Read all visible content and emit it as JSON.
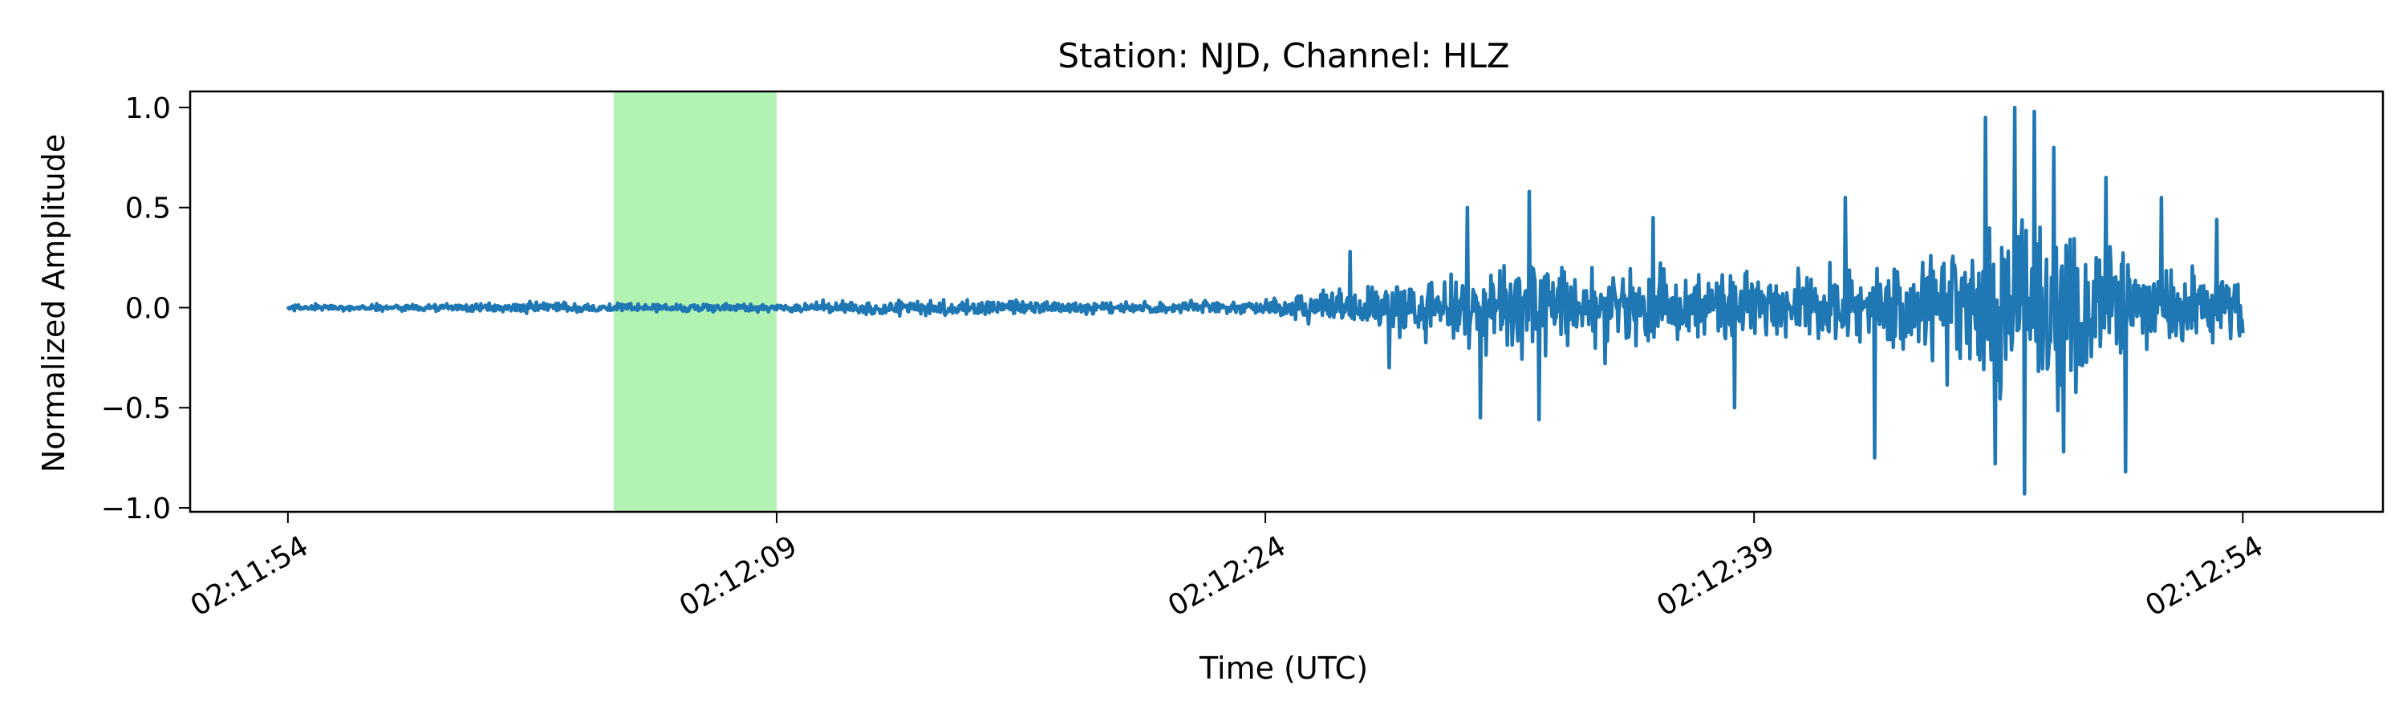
{
  "chart_data": {
    "type": "line",
    "title": "Station: NJD, Channel: HLZ",
    "xlabel": "Time (UTC)",
    "ylabel": "Normalized Amplitude",
    "x_unit": "seconds after 02:11:54 UTC",
    "xlim": [
      -3,
      64.3
    ],
    "ylim": [
      -1.02,
      1.08
    ],
    "x_ticks": [
      {
        "value": 0,
        "label": "02:11:54"
      },
      {
        "value": 15,
        "label": "02:12:09"
      },
      {
        "value": 30,
        "label": "02:12:24"
      },
      {
        "value": 45,
        "label": "02:12:39"
      },
      {
        "value": 60,
        "label": "02:12:54"
      }
    ],
    "y_ticks": [
      {
        "value": 1.0,
        "label": "1.0"
      },
      {
        "value": 0.5,
        "label": "0.5"
      },
      {
        "value": 0.0,
        "label": "0.0"
      },
      {
        "value": -0.5,
        "label": "−0.5"
      },
      {
        "value": -1.0,
        "label": "−1.0"
      }
    ],
    "highlight_window": {
      "x_start": 10.0,
      "x_end": 15.0,
      "color": "#b2f2b2"
    },
    "series": [
      {
        "color": "#1f77b4",
        "x_start": 0,
        "x_end": 60,
        "envelope": [
          {
            "t": 0,
            "amp": 0.03
          },
          {
            "t": 5,
            "amp": 0.04
          },
          {
            "t": 8,
            "amp": 0.05
          },
          {
            "t": 15,
            "amp": 0.04
          },
          {
            "t": 18,
            "amp": 0.08
          },
          {
            "t": 25,
            "amp": 0.06
          },
          {
            "t": 29,
            "amp": 0.07
          },
          {
            "t": 33,
            "amp": 0.2
          },
          {
            "t": 36,
            "amp": 0.35
          },
          {
            "t": 38,
            "amp": 0.45
          },
          {
            "t": 42,
            "amp": 0.4
          },
          {
            "t": 45,
            "amp": 0.35
          },
          {
            "t": 50,
            "amp": 0.45
          },
          {
            "t": 52,
            "amp": 0.9
          },
          {
            "t": 54,
            "amp": 1.0
          },
          {
            "t": 56,
            "amp": 0.6
          },
          {
            "t": 58,
            "amp": 0.4
          },
          {
            "t": 60,
            "amp": 0.3
          }
        ],
        "peak_events": [
          {
            "t": 32.6,
            "value": 0.28
          },
          {
            "t": 33.8,
            "value": -0.3
          },
          {
            "t": 36.2,
            "value": 0.5
          },
          {
            "t": 36.6,
            "value": -0.55
          },
          {
            "t": 38.1,
            "value": 0.58
          },
          {
            "t": 38.4,
            "value": -0.56
          },
          {
            "t": 41.9,
            "value": 0.45
          },
          {
            "t": 44.4,
            "value": -0.5
          },
          {
            "t": 47.8,
            "value": 0.55
          },
          {
            "t": 48.7,
            "value": -0.75
          },
          {
            "t": 52.1,
            "value": 0.95
          },
          {
            "t": 52.4,
            "value": -0.78
          },
          {
            "t": 53.0,
            "value": 1.0
          },
          {
            "t": 53.3,
            "value": -0.93
          },
          {
            "t": 53.6,
            "value": 0.98
          },
          {
            "t": 54.2,
            "value": 0.8
          },
          {
            "t": 54.5,
            "value": -0.72
          },
          {
            "t": 55.8,
            "value": 0.65
          },
          {
            "t": 56.4,
            "value": -0.82
          },
          {
            "t": 57.5,
            "value": 0.55
          },
          {
            "t": 59.2,
            "value": 0.44
          }
        ]
      }
    ]
  }
}
